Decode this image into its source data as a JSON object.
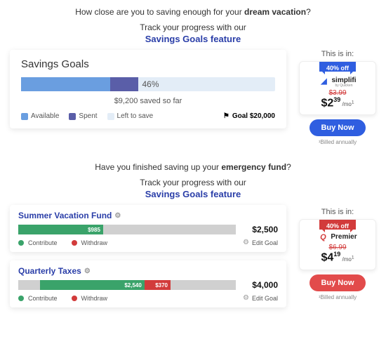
{
  "colors": {
    "link": "#2a3ea8",
    "available": "#6a9ee0",
    "spent": "#5a5ea8",
    "left": "#e3edf7",
    "green": "#3aa36a",
    "red": "#d23b3b",
    "grey": "#d0d0d0",
    "blue_btn": "#2f5ee0",
    "red_btn": "#e24b4b"
  },
  "top": {
    "headline_pre": "How close are you to saving enough for your ",
    "headline_bold": "dream vacation",
    "headline_post": "?",
    "subline": "Track your progress with our",
    "feature": "Savings Goals feature",
    "card": {
      "title": "Savings Goals",
      "available_pct": 35,
      "spent_pct": 11,
      "pct_label": "46%",
      "saved": "$9,200 saved so far",
      "legend": {
        "available": "Available",
        "spent": "Spent",
        "left": "Left to save"
      },
      "goal_label": "Goal $20,000"
    },
    "offer": {
      "thisin": "This is in:",
      "badge": "40% off",
      "brand": "simplifi",
      "brand_sub": "by Quicken",
      "strike": "$3.99",
      "dollars": "$2",
      "cents": "39",
      "per": "/mo",
      "per_sup": "1",
      "buy": "Buy Now",
      "billed": "¹Billed annually"
    }
  },
  "bottom": {
    "headline_pre": "Have you finished saving up your ",
    "headline_bold": "emergency fund",
    "headline_post": "?",
    "subline": "Track your progress with our",
    "feature": "Savings Goals feature",
    "goals": [
      {
        "title": "Summer Vacation Fund",
        "segments": [
          {
            "color": "#3aa36a",
            "width_pct": 39,
            "label": "$985"
          }
        ],
        "amount": "$2,500",
        "legend_contribute": "Contribute",
        "legend_withdraw": "Withdraw",
        "edit": "Edit Goal"
      },
      {
        "title": "Quarterly Taxes",
        "segments": [
          {
            "color": "#3aa36a",
            "width_pct": 48,
            "label": "$2,540",
            "indent_pct": 10
          },
          {
            "color": "#d23b3b",
            "width_pct": 12,
            "label": "$370"
          }
        ],
        "amount": "$4,000",
        "legend_contribute": "Contribute",
        "legend_withdraw": "Withdraw",
        "edit": "Edit Goal"
      }
    ],
    "offer": {
      "thisin": "This is in:",
      "badge": "40% off",
      "brand": "Premier",
      "brand_mark": "Q",
      "strike": "$6.99",
      "dollars": "$4",
      "cents": "19",
      "per": "/mo",
      "per_sup": "1",
      "buy": "Buy Now",
      "billed": "¹Billed annually"
    }
  }
}
